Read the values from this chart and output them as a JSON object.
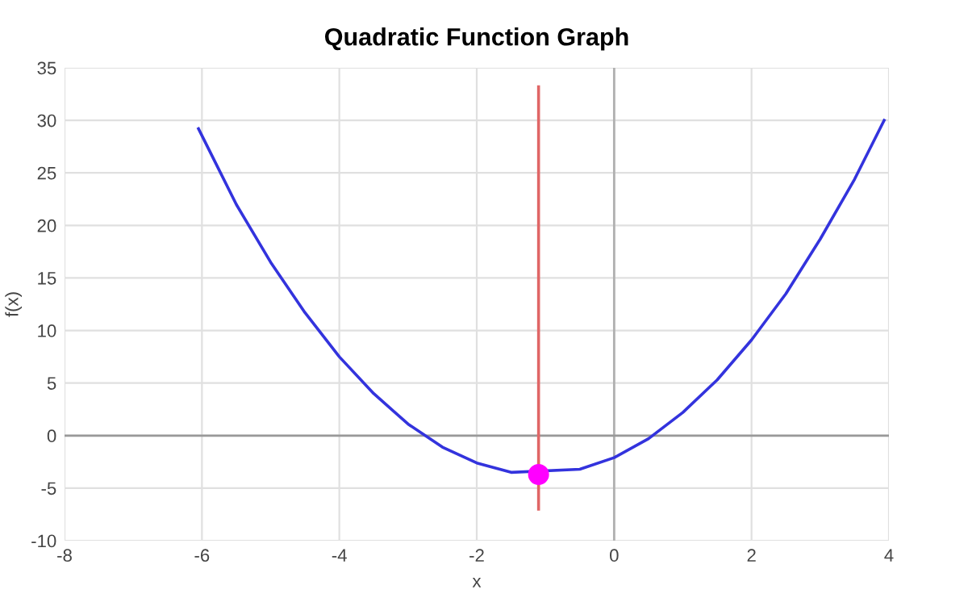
{
  "chart_data": {
    "type": "line",
    "title": "Quadratic Function Graph",
    "xlabel": "x",
    "ylabel": "f(x)",
    "series": [
      {
        "color": "#3333dd",
        "x": [
          -6.05,
          -5.5,
          -5,
          -4.5,
          -4,
          -3.5,
          -3,
          -2.5,
          -2,
          -1.5,
          -0.5,
          0,
          0.5,
          1,
          1.5,
          2,
          2.5,
          3,
          3.5,
          3.93
        ],
        "values": [
          29.2,
          22.0,
          16.5,
          11.7,
          7.5,
          4.0,
          1.1,
          -1.1,
          -2.6,
          -3.5,
          -3.2,
          -2.1,
          -0.3,
          2.2,
          5.3,
          9.1,
          13.5,
          18.7,
          24.4,
          30.0
        ]
      },
      {
        "type": "line",
        "color": "#e06666",
        "x": [
          -1.1,
          -1.1
        ],
        "values": [
          33.2,
          -7.0
        ]
      },
      {
        "type": "scatter",
        "color": "#ff00ff",
        "marker": "circle",
        "x": [
          -1.1
        ],
        "values": [
          -3.7
        ]
      }
    ],
    "ref_lines": [
      {
        "axis": "x",
        "value": 0,
        "color": "#b0b0b0"
      },
      {
        "axis": "y",
        "value": 0,
        "color": "#999999"
      }
    ],
    "xlim": [
      -8,
      4
    ],
    "xticks": [
      -8,
      -6,
      -4,
      -2,
      0,
      2,
      4
    ],
    "ylim": [
      -10,
      35
    ],
    "yticks": [
      -10,
      -5,
      0,
      5,
      10,
      15,
      20,
      25,
      30,
      35
    ],
    "grid": true
  }
}
